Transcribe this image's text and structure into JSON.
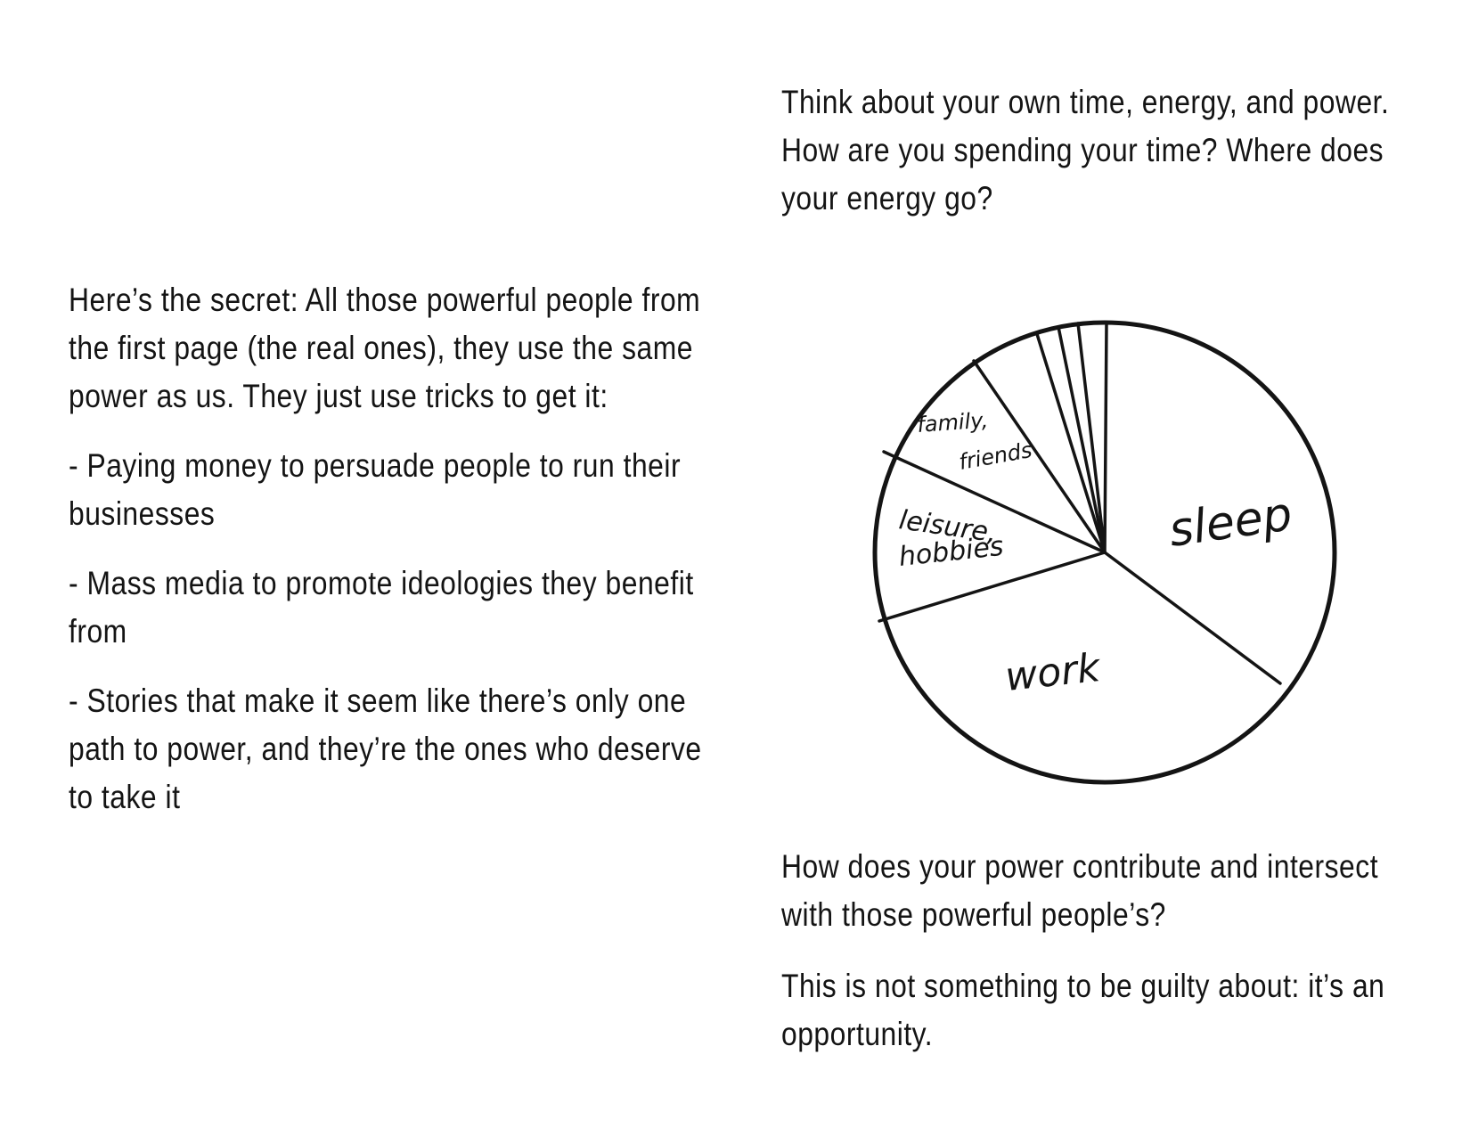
{
  "left": {
    "intro": "Here’s the secret: All those powerful people from the first page (the real ones), they use the same power as us. They just use tricks to get it:",
    "bullet1": "- Paying money to persuade people to run their businesses",
    "bullet2": "- Mass media to promote ideologies they benefit from",
    "bullet3": "- Stories that make it seem like there’s only one path to power, and they’re the ones who deserve to take it"
  },
  "right": {
    "question1": "Think about your own time, energy, and power. How are you spending your time? Where does your energy go?",
    "question2": "How does your power contribute and intersect with those powerful people’s?",
    "closing": "This is not something to be guilty about: it’s an opportunity."
  },
  "pie": {
    "labels": {
      "sleep": "sleep",
      "work": "work",
      "leisure_line1": "leisure,",
      "leisure_line2": "hobbies",
      "family_line1": "family,",
      "family_line2": "friends"
    }
  }
}
